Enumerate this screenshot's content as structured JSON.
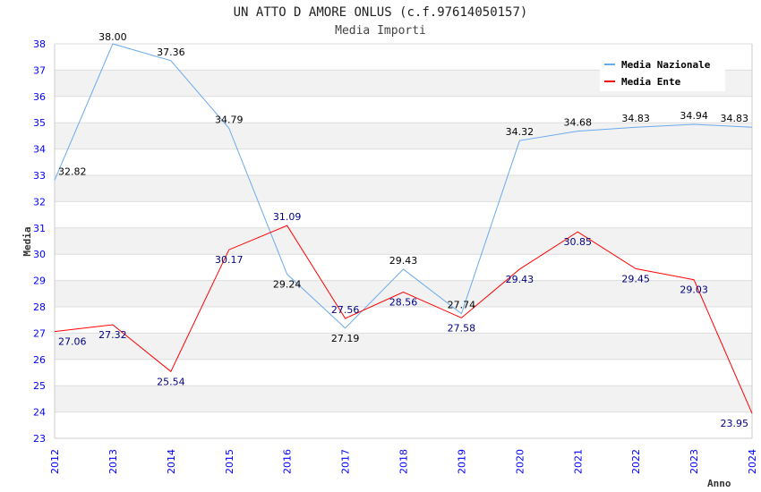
{
  "chart_data": {
    "type": "line",
    "title": "UN ATTO D AMORE ONLUS (c.f.97614050157)",
    "subtitle": "Media Importi",
    "xlabel": "Anno",
    "ylabel": "Media",
    "ylim": [
      23,
      38
    ],
    "yticks": [
      23,
      24,
      25,
      26,
      27,
      28,
      29,
      30,
      31,
      32,
      33,
      34,
      35,
      36,
      37,
      38
    ],
    "categories": [
      "2012",
      "2013",
      "2014",
      "2015",
      "2016",
      "2017",
      "2018",
      "2019",
      "2020",
      "2021",
      "2022",
      "2023",
      "2024"
    ],
    "legend_position": "top-right",
    "series": [
      {
        "name": "Media Nazionale",
        "color": "#6aaaee",
        "label_color": "#000000",
        "values": [
          32.82,
          38.0,
          37.36,
          34.79,
          29.24,
          27.19,
          29.43,
          27.74,
          34.32,
          34.68,
          34.83,
          34.94,
          34.83
        ]
      },
      {
        "name": "Media Ente",
        "color": "#ff0000",
        "label_color": "#000080",
        "values": [
          27.06,
          27.32,
          25.54,
          30.17,
          31.09,
          27.56,
          28.56,
          27.58,
          29.43,
          30.85,
          29.45,
          29.03,
          23.95
        ]
      }
    ]
  }
}
